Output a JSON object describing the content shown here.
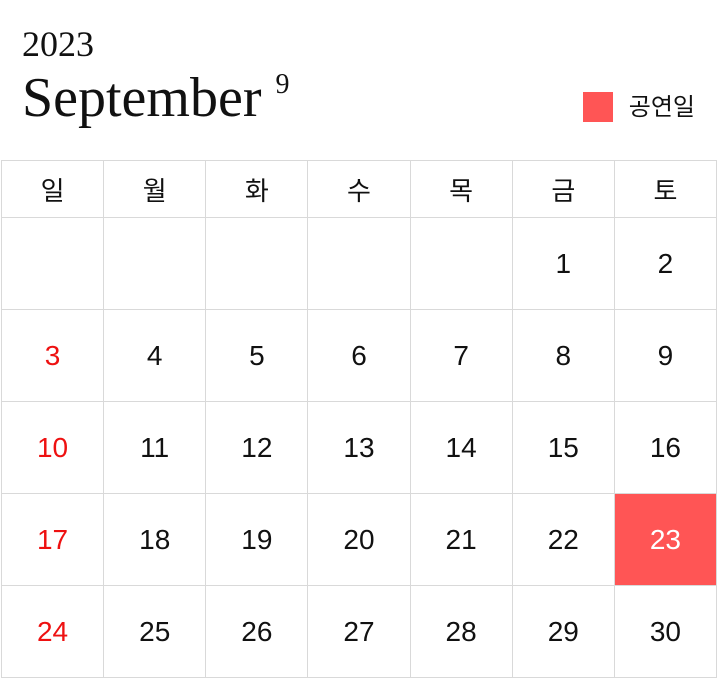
{
  "header": {
    "year": "2023",
    "month_name": "September",
    "month_number": "9"
  },
  "legend": {
    "label": "공연일",
    "color": "#ff5555"
  },
  "colors": {
    "sunday_text": "#ee1111",
    "event_background": "#ff5555",
    "event_text": "#ffffff",
    "grid_border": "#d9d9d9"
  },
  "calendar": {
    "weekdays": [
      "일",
      "월",
      "화",
      "수",
      "목",
      "금",
      "토"
    ],
    "weeks": [
      [
        {
          "day": "",
          "sunday": true
        },
        {
          "day": ""
        },
        {
          "day": ""
        },
        {
          "day": ""
        },
        {
          "day": ""
        },
        {
          "day": "1"
        },
        {
          "day": "2"
        }
      ],
      [
        {
          "day": "3",
          "sunday": true
        },
        {
          "day": "4"
        },
        {
          "day": "5"
        },
        {
          "day": "6"
        },
        {
          "day": "7"
        },
        {
          "day": "8"
        },
        {
          "day": "9"
        }
      ],
      [
        {
          "day": "10",
          "sunday": true
        },
        {
          "day": "11"
        },
        {
          "day": "12"
        },
        {
          "day": "13"
        },
        {
          "day": "14"
        },
        {
          "day": "15"
        },
        {
          "day": "16"
        }
      ],
      [
        {
          "day": "17",
          "sunday": true
        },
        {
          "day": "18"
        },
        {
          "day": "19"
        },
        {
          "day": "20"
        },
        {
          "day": "21"
        },
        {
          "day": "22"
        },
        {
          "day": "23",
          "event": true
        }
      ],
      [
        {
          "day": "24",
          "sunday": true
        },
        {
          "day": "25"
        },
        {
          "day": "26"
        },
        {
          "day": "27"
        },
        {
          "day": "28"
        },
        {
          "day": "29"
        },
        {
          "day": "30"
        }
      ]
    ]
  }
}
